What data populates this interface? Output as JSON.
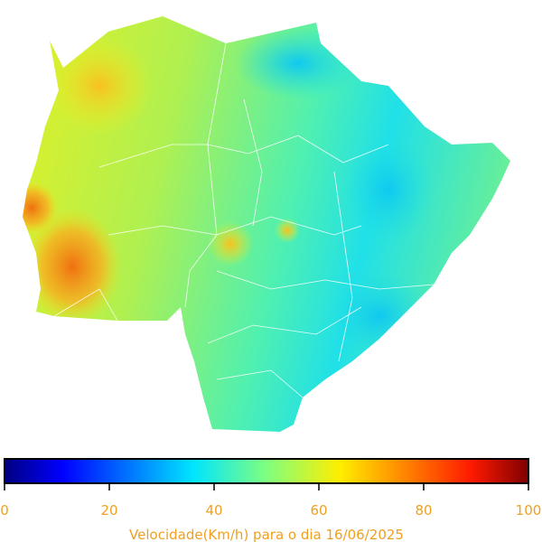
{
  "colorbar": {
    "range": [
      0,
      100
    ],
    "ticks": [
      0,
      20,
      40,
      60,
      80,
      100
    ],
    "label": "Velocidade(Km/h) para o dia 16/06/2025"
  }
}
